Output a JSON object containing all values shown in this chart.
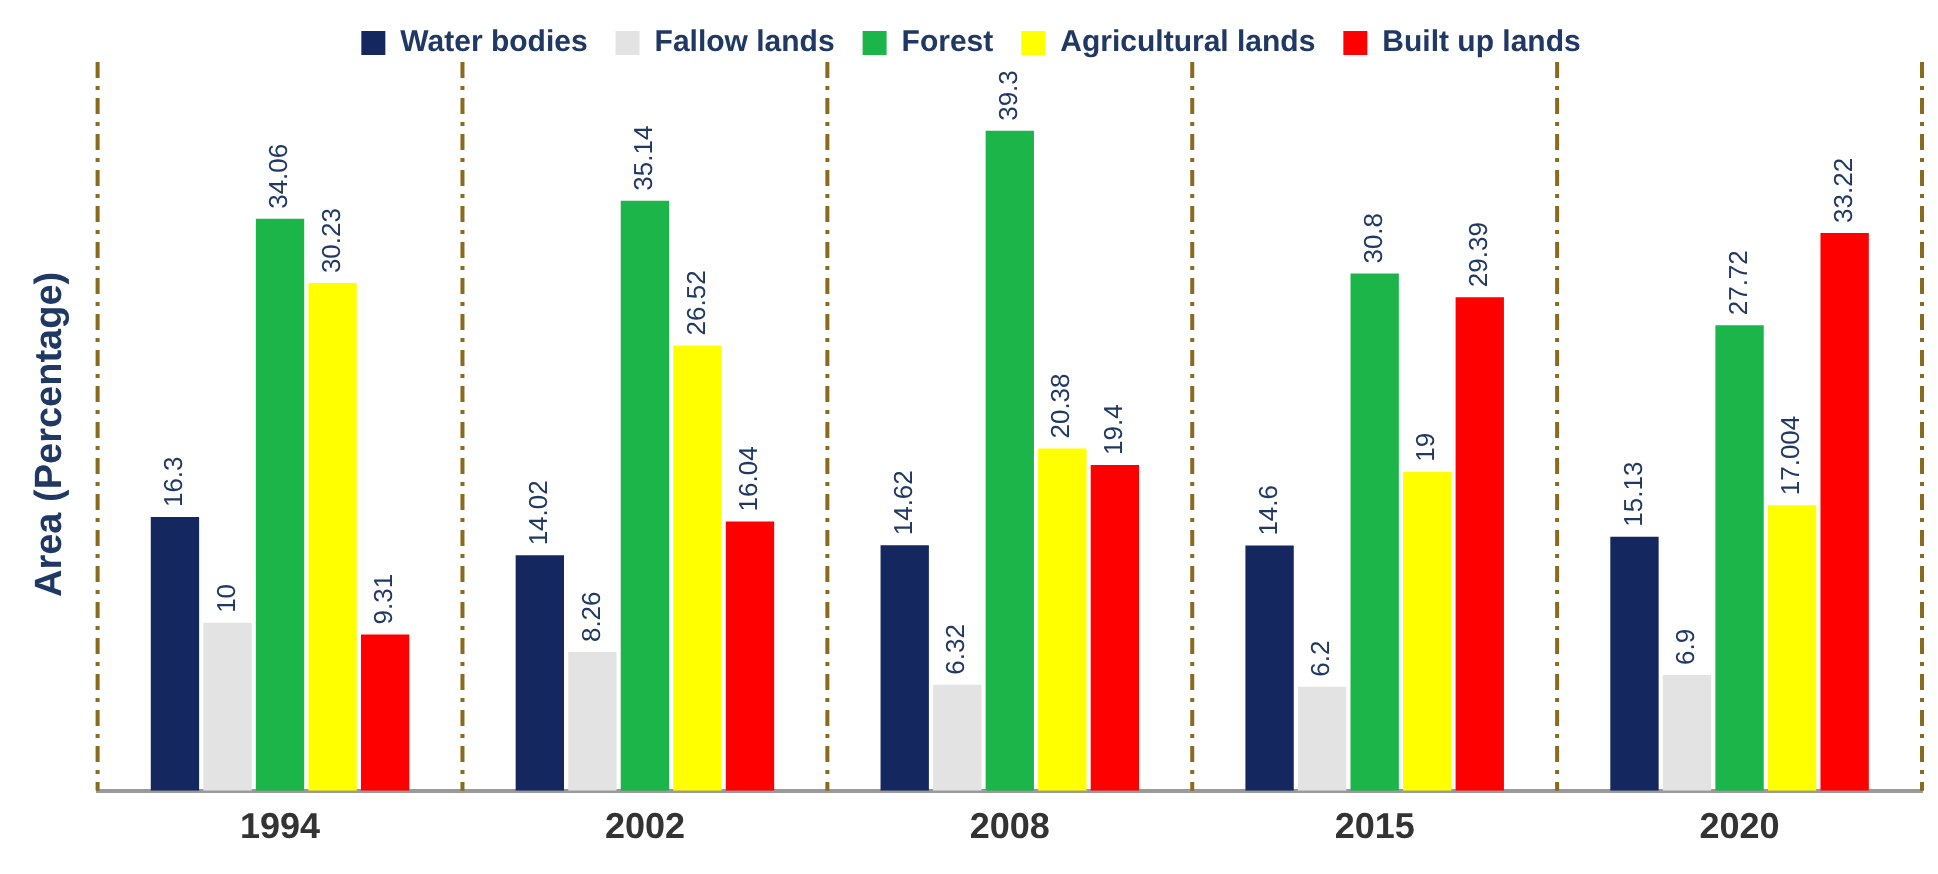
{
  "chart_data": {
    "type": "bar",
    "ylabel": "Area (Percentage)",
    "categories": [
      "1994",
      "2002",
      "2008",
      "2015",
      "2020"
    ],
    "series": [
      {
        "name": "Water bodies",
        "color": "#14275e",
        "values": [
          16.3,
          14.02,
          14.62,
          14.6,
          15.13
        ],
        "value_labels": [
          "16.3",
          "14.02",
          "14.62",
          "14.6",
          "15.13"
        ]
      },
      {
        "name": "Fallow lands",
        "color": "#e3e3e3",
        "values": [
          10,
          8.26,
          6.32,
          6.2,
          6.9
        ],
        "value_labels": [
          "10",
          "8.26",
          "6.32",
          "6.2",
          "6.9"
        ]
      },
      {
        "name": "Forest",
        "color": "#1cb54a",
        "values": [
          34.06,
          35.14,
          39.3,
          30.8,
          27.72
        ],
        "value_labels": [
          "34.06",
          "35.14",
          "39.3",
          "30.8",
          "27.72"
        ]
      },
      {
        "name": "Agricultural lands",
        "color": "#ffff00",
        "values": [
          30.23,
          26.52,
          20.38,
          19,
          17.004
        ],
        "value_labels": [
          "30.23",
          "26.52",
          "20.38",
          "19",
          "17.004"
        ]
      },
      {
        "name": "Built up lands",
        "color": "#ff0000",
        "values": [
          9.31,
          16.04,
          19.4,
          29.39,
          33.22
        ],
        "value_labels": [
          "9.31",
          "16.04",
          "19.4",
          "29.39",
          "33.22"
        ]
      }
    ],
    "legend": "top",
    "grid": false
  }
}
